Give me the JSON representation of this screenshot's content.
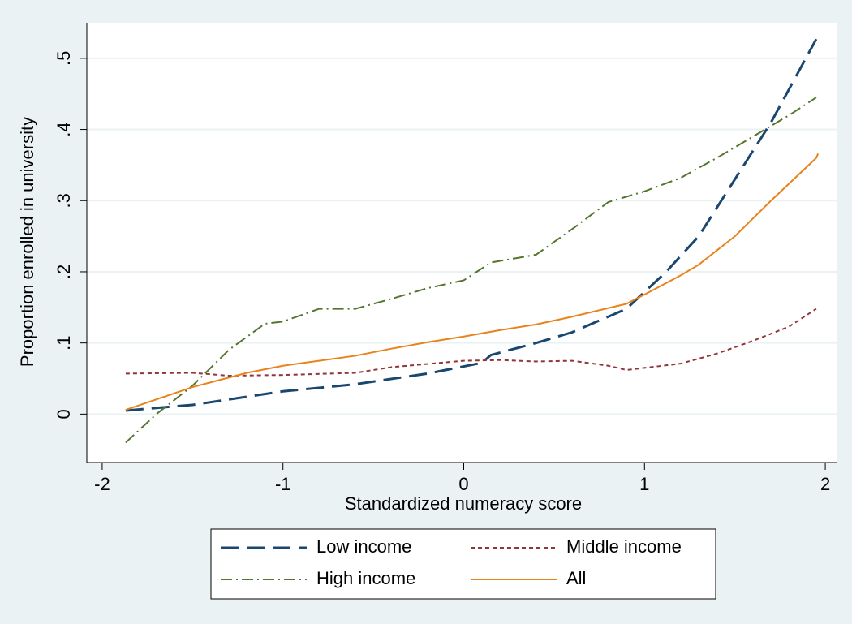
{
  "chart_data": {
    "type": "line",
    "x_label": "Standardized numeracy score",
    "y_label": "Proportion enrolled in university",
    "xlim": [
      -2.085,
      2.067
    ],
    "ylim": [
      -0.068,
      0.55
    ],
    "xticks": [
      -2,
      -1,
      0,
      1,
      2
    ],
    "yticks": [
      0,
      {
        "value": 0.1,
        "label": ".1"
      },
      {
        "value": 0.2,
        "label": ".2"
      },
      {
        "value": 0.3,
        "label": ".3"
      },
      {
        "value": 0.4,
        "label": ".4"
      },
      {
        "value": 0.5,
        "label": ".5"
      }
    ],
    "grid": true,
    "legend": "bottom",
    "series": [
      {
        "name": "Low income",
        "color": "#1a476f",
        "dash": "long",
        "x": [
          -1.87,
          -1.5,
          -1.0,
          -0.6,
          -0.2,
          0.1,
          0.15,
          0.4,
          0.6,
          0.9,
          1.12,
          1.3,
          1.5,
          1.7,
          1.95
        ],
        "values": [
          0.005,
          0.013,
          0.032,
          0.042,
          0.057,
          0.072,
          0.083,
          0.1,
          0.115,
          0.148,
          0.2,
          0.25,
          0.33,
          0.41,
          0.527
        ]
      },
      {
        "name": "Middle income",
        "color": "#90353b",
        "dash": "short",
        "x": [
          -1.87,
          -1.5,
          -1.3,
          -1.0,
          -0.6,
          -0.4,
          0,
          0.2,
          0.4,
          0.6,
          0.8,
          0.9,
          1.2,
          1.4,
          1.6,
          1.8,
          1.95
        ],
        "values": [
          0.057,
          0.058,
          0.054,
          0.055,
          0.058,
          0.066,
          0.075,
          0.076,
          0.074,
          0.075,
          0.068,
          0.062,
          0.071,
          0.085,
          0.103,
          0.123,
          0.148
        ]
      },
      {
        "name": "High income",
        "color": "#55752f",
        "dash": "dashdot",
        "x": [
          -1.87,
          -1.7,
          -1.5,
          -1.3,
          -1.1,
          -1.0,
          -0.8,
          -0.6,
          -0.4,
          -0.2,
          0,
          0.15,
          0.4,
          0.6,
          0.8,
          1.0,
          1.2,
          1.4,
          1.6,
          1.8,
          1.95
        ],
        "values": [
          -0.04,
          0,
          0.04,
          0.09,
          0.127,
          0.13,
          0.148,
          0.148,
          0.162,
          0.177,
          0.188,
          0.213,
          0.224,
          0.26,
          0.298,
          0.313,
          0.332,
          0.36,
          0.39,
          0.42,
          0.445
        ]
      },
      {
        "name": "All",
        "color": "#e8831b",
        "dash": "solid",
        "x": [
          -1.87,
          -1.5,
          -1.2,
          -1.0,
          -0.8,
          -0.6,
          -0.4,
          -0.2,
          0,
          0.2,
          0.4,
          0.6,
          0.9,
          1.0,
          1.2,
          1.3,
          1.5,
          1.7,
          1.95,
          1.96
        ],
        "values": [
          0.006,
          0.038,
          0.058,
          0.068,
          0.075,
          0.082,
          0.092,
          0.101,
          0.109,
          0.118,
          0.126,
          0.137,
          0.155,
          0.168,
          0.195,
          0.21,
          0.25,
          0.3,
          0.36,
          0.366
        ]
      }
    ]
  }
}
